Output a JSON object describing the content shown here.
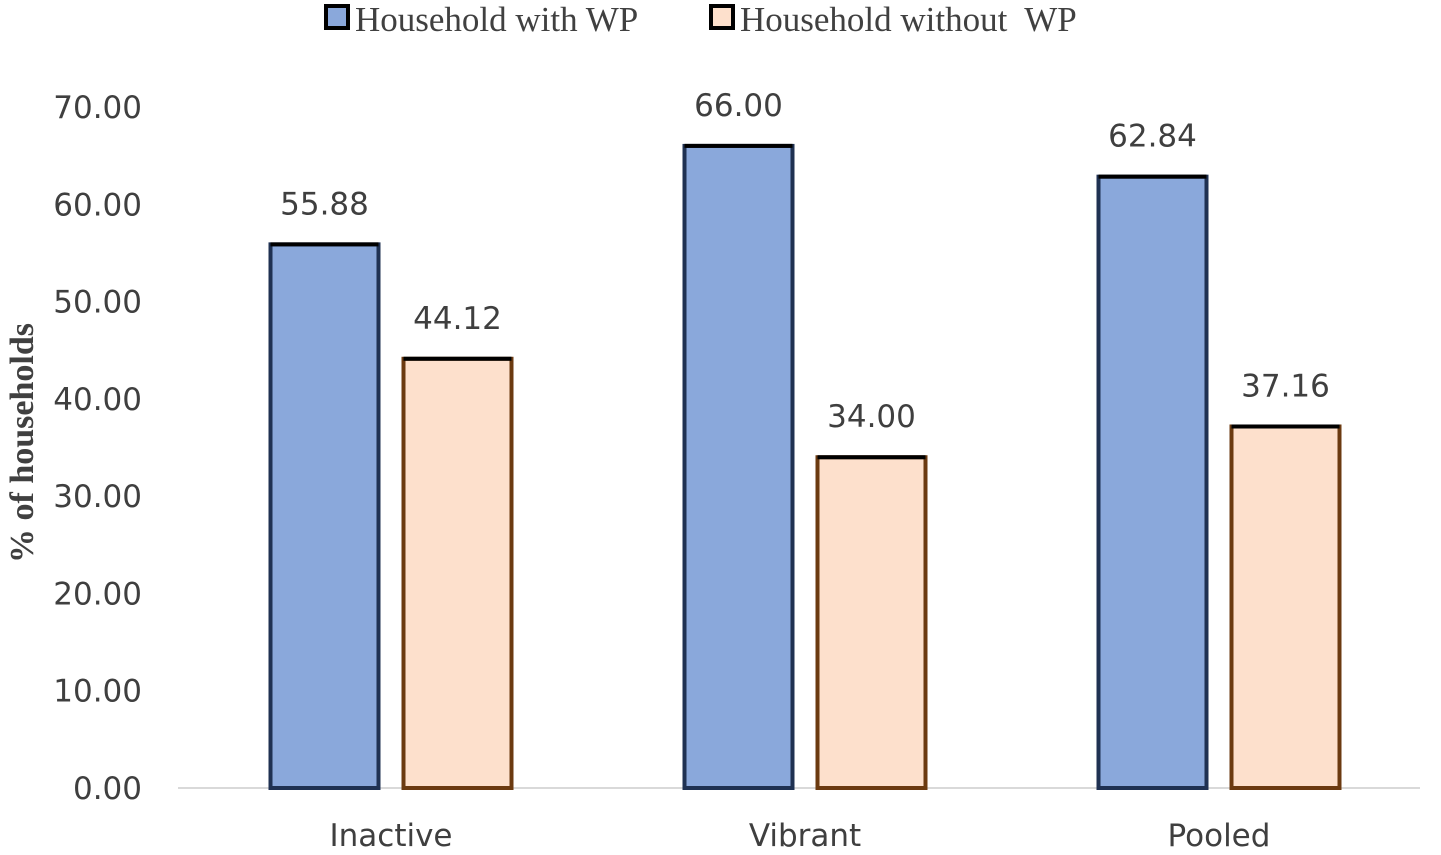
{
  "chart_data": {
    "type": "bar",
    "title": "",
    "xlabel": "",
    "ylabel": "% of households",
    "categories": [
      "Inactive",
      "Vibrant",
      "Pooled"
    ],
    "series": [
      {
        "name": "Household with WP",
        "values": [
          55.88,
          66.0,
          62.84
        ],
        "labels": [
          "55.88",
          "66.00",
          "62.84"
        ],
        "fill": "#8aa8db",
        "stroke": "#1f3152"
      },
      {
        "name": "Household without  WP",
        "values": [
          44.12,
          34.0,
          37.16
        ],
        "labels": [
          "44.12",
          "34.00",
          "37.16"
        ],
        "fill": "#fde0cc",
        "stroke": "#6b3a10"
      }
    ],
    "ylim": [
      0,
      70
    ],
    "yticks": [
      "0.00",
      "10.00",
      "20.00",
      "30.00",
      "40.00",
      "50.00",
      "60.00",
      "70.00"
    ],
    "grid": false,
    "legend": "top-center"
  }
}
